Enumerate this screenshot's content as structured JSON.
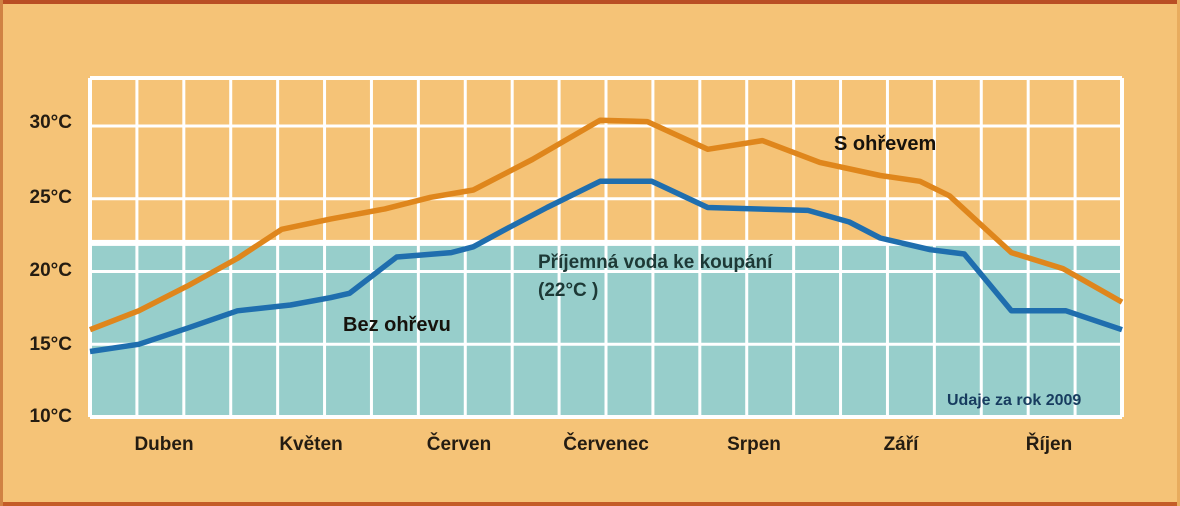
{
  "y_axis": {
    "labels": [
      "30°C",
      "25°C",
      "20°C",
      "15°C",
      "10°C"
    ]
  },
  "x_axis": {
    "labels": [
      "Duben",
      "Květen",
      "Červen",
      "Červenec",
      "Srpen",
      "Září",
      "Říjen"
    ]
  },
  "annotations": {
    "heated": "S ohřevem",
    "unheated": "Bez ohřevu",
    "comfort_line1": "Příjemná voda ke koupání",
    "comfort_line2": "(22°C )",
    "source": "Udaje za rok 2009"
  },
  "colors": {
    "background": "#F5C377",
    "comfort_zone_fill": "#97CECB",
    "heated_line": "#DF861C",
    "unheated_line": "#1F6EAE",
    "grid": "#FFFFFF",
    "frame_top": "#B94E24",
    "axis_text": "#241C12",
    "comfort_text": "#1D3936",
    "source_text": "#173C5F"
  },
  "chart_data": {
    "type": "line",
    "title": "",
    "x_unit": "months, 0 = start of Duben (April) to 7 = end of Říjen (October), data for year 2009",
    "y_unit": "°C",
    "categories": [
      "Duben",
      "Květen",
      "Červen",
      "Červenec",
      "Srpen",
      "Září",
      "Říjen"
    ],
    "y_ticks": [
      10,
      15,
      20,
      25,
      30
    ],
    "ylim": [
      10,
      33.3
    ],
    "xlim": [
      0,
      7
    ],
    "grid": true,
    "vertical_grid_divisions": 22,
    "comfort_zone": {
      "label": "Příjemná voda ke koupání (22°C)",
      "max_temp": 22,
      "min_temp": 10,
      "note": "teal shaded band marks pleasant swimming water below 22°C"
    },
    "source": "Udaje za rok 2009",
    "series": [
      {
        "name": "S ohřevem",
        "color": "#DF861C",
        "points": [
          [
            0.0,
            16.0
          ],
          [
            0.33,
            17.3
          ],
          [
            0.66,
            19.0
          ],
          [
            1.0,
            20.9
          ],
          [
            1.3,
            22.9
          ],
          [
            1.63,
            23.6
          ],
          [
            2.0,
            24.3
          ],
          [
            2.31,
            25.1
          ],
          [
            2.6,
            25.6
          ],
          [
            3.0,
            27.7
          ],
          [
            3.46,
            30.4
          ],
          [
            3.78,
            30.3
          ],
          [
            4.19,
            28.4
          ],
          [
            4.56,
            29.0
          ],
          [
            4.95,
            27.5
          ],
          [
            5.36,
            26.6
          ],
          [
            5.63,
            26.2
          ],
          [
            5.83,
            25.2
          ],
          [
            6.25,
            21.3
          ],
          [
            6.6,
            20.2
          ],
          [
            7.0,
            17.9
          ]
        ]
      },
      {
        "name": "Bez ohřevu",
        "color": "#1F6EAE",
        "points": [
          [
            0.0,
            14.5
          ],
          [
            0.33,
            15.0
          ],
          [
            0.66,
            16.1
          ],
          [
            1.0,
            17.3
          ],
          [
            1.36,
            17.7
          ],
          [
            1.63,
            18.2
          ],
          [
            1.76,
            18.5
          ],
          [
            2.08,
            21.0
          ],
          [
            2.45,
            21.3
          ],
          [
            2.6,
            21.7
          ],
          [
            2.8,
            22.8
          ],
          [
            3.1,
            24.4
          ],
          [
            3.46,
            26.2
          ],
          [
            3.81,
            26.2
          ],
          [
            4.19,
            24.4
          ],
          [
            4.87,
            24.2
          ],
          [
            5.15,
            23.4
          ],
          [
            5.36,
            22.3
          ],
          [
            5.7,
            21.5
          ],
          [
            5.93,
            21.2
          ],
          [
            6.25,
            17.3
          ],
          [
            6.62,
            17.3
          ],
          [
            7.0,
            16.0
          ]
        ]
      }
    ]
  }
}
